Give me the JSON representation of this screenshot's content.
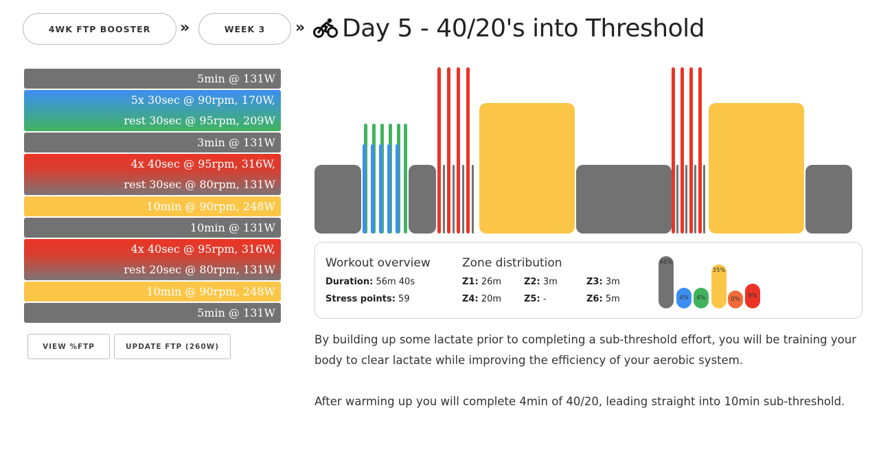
{
  "breadcrumb": {
    "program": "4WK FTP BOOSTER",
    "separator_1": "»",
    "week": "WEEK 3",
    "separator_2": "»"
  },
  "page": {
    "title": "Day 5 - 40/20's into Threshold",
    "title_icon": "cyclist-icon"
  },
  "workout_steps": [
    {
      "lines": [
        "5min @ 131W"
      ],
      "color": "gray"
    },
    {
      "lines": [
        "5x 30sec @ 90rpm, 170W,",
        "rest 30sec @ 95rpm, 209W"
      ],
      "color": "blue-green"
    },
    {
      "lines": [
        "3min @ 131W"
      ],
      "color": "gray"
    },
    {
      "lines": [
        "4x 40sec @ 95rpm, 316W,",
        "rest 30sec @ 80rpm, 131W"
      ],
      "color": "red-gray"
    },
    {
      "lines": [
        "10min @ 90rpm, 248W"
      ],
      "color": "yellow"
    },
    {
      "lines": [
        "10min @ 131W"
      ],
      "color": "gray"
    },
    {
      "lines": [
        "4x 40sec @ 95rpm, 316W,",
        "rest 20sec @ 80rpm, 131W"
      ],
      "color": "red-gray"
    },
    {
      "lines": [
        "10min @ 90rpm, 248W"
      ],
      "color": "yellow"
    },
    {
      "lines": [
        "5min @ 131W"
      ],
      "color": "gray"
    }
  ],
  "buttons": {
    "view_ftp": "VIEW %FTP",
    "update_ftp": "UPDATE FTP (260W)"
  },
  "overview": {
    "heading": "Workout overview",
    "duration_label": "Duration:",
    "duration_value": "56m 40s",
    "stress_label": "Stress points:",
    "stress_value": "59",
    "zone_heading": "Zone distribution",
    "zones": [
      {
        "label": "Z1:",
        "value": "26m"
      },
      {
        "label": "Z2:",
        "value": "3m"
      },
      {
        "label": "Z3:",
        "value": "3m"
      },
      {
        "label": "Z4:",
        "value": "20m"
      },
      {
        "label": "Z5:",
        "value": "-"
      },
      {
        "label": "Z6:",
        "value": "5m"
      }
    ],
    "zone_pills": [
      {
        "label": "46%",
        "percent": 46,
        "color": "#727272"
      },
      {
        "label": "4%",
        "percent": 4,
        "color": "#3d8ef3"
      },
      {
        "label": "4%",
        "percent": 4,
        "color": "#41b35f"
      },
      {
        "label": "35%",
        "percent": 35,
        "color": "#fbc648"
      },
      {
        "label": "0%",
        "percent": 0,
        "color": "#f26a3a"
      },
      {
        "label": "9%",
        "percent": 9,
        "color": "#eb3425"
      }
    ]
  },
  "description": {
    "paragraph_1": "By building up some lactate prior to completing a sub-threshold effort, you will be training your body to clear lactate while improving the efficiency of your aerobic system.",
    "paragraph_2": "After warming up you will complete 4min of 40/20, leading straight into 10min sub-threshold."
  },
  "colors": {
    "gray": "#727272",
    "blue": "#3d8ef3",
    "green": "#41b35f",
    "red": "#eb3425",
    "yellow": "#fbc648"
  }
}
